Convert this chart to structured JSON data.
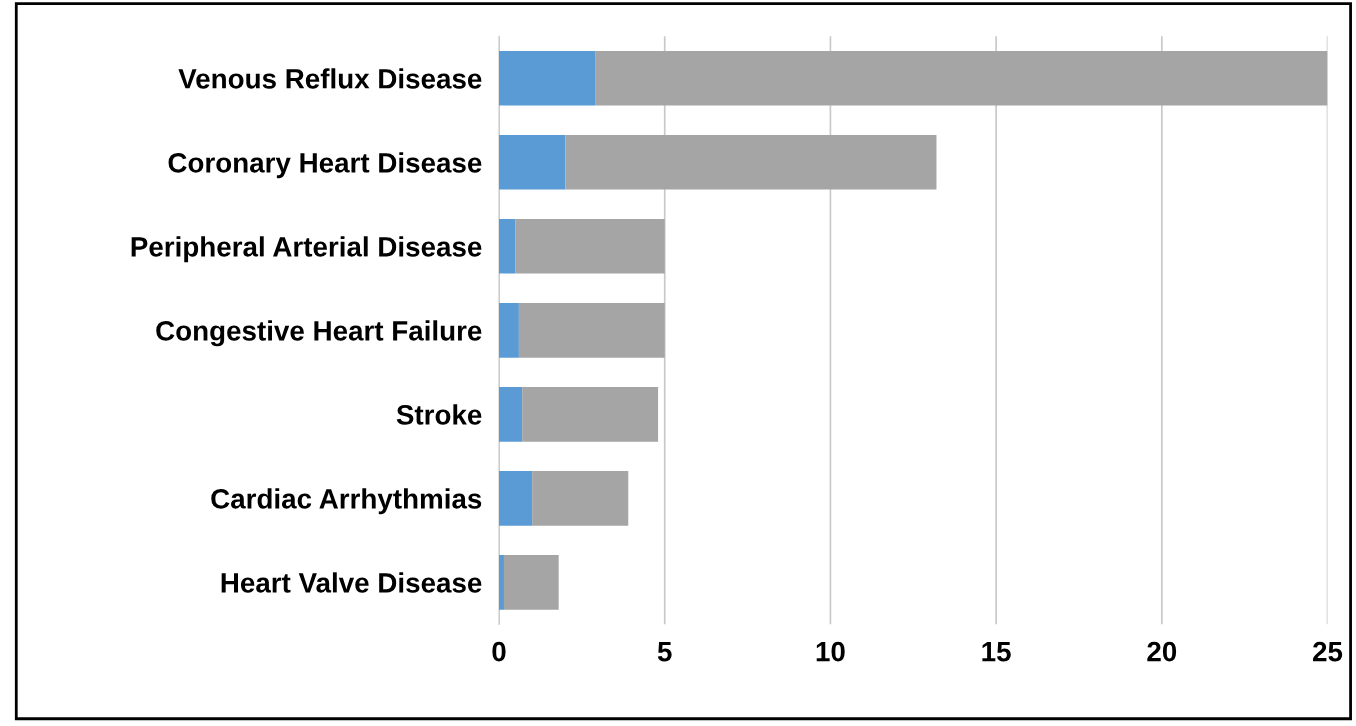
{
  "chart_data": {
    "type": "bar",
    "orientation": "horizontal",
    "stacked": true,
    "categories": [
      "Venous Reflux Disease",
      "Coronary Heart Disease",
      "Peripheral Arterial Disease",
      "Congestive Heart Failure",
      "Stroke",
      "Cardiac Arrhythmias",
      "Heart Valve Disease"
    ],
    "series": [
      {
        "color": "#5b9bd5",
        "values": [
          2.9,
          2.0,
          0.5,
          0.6,
          0.7,
          1.0,
          0.15
        ]
      },
      {
        "color": "#a5a5a5",
        "values": [
          22.1,
          11.2,
          4.5,
          4.4,
          4.1,
          2.9,
          1.65
        ]
      }
    ],
    "xlim": [
      0,
      25
    ],
    "xticks": [
      0,
      5,
      10,
      15,
      20,
      25
    ],
    "grid": "x"
  }
}
